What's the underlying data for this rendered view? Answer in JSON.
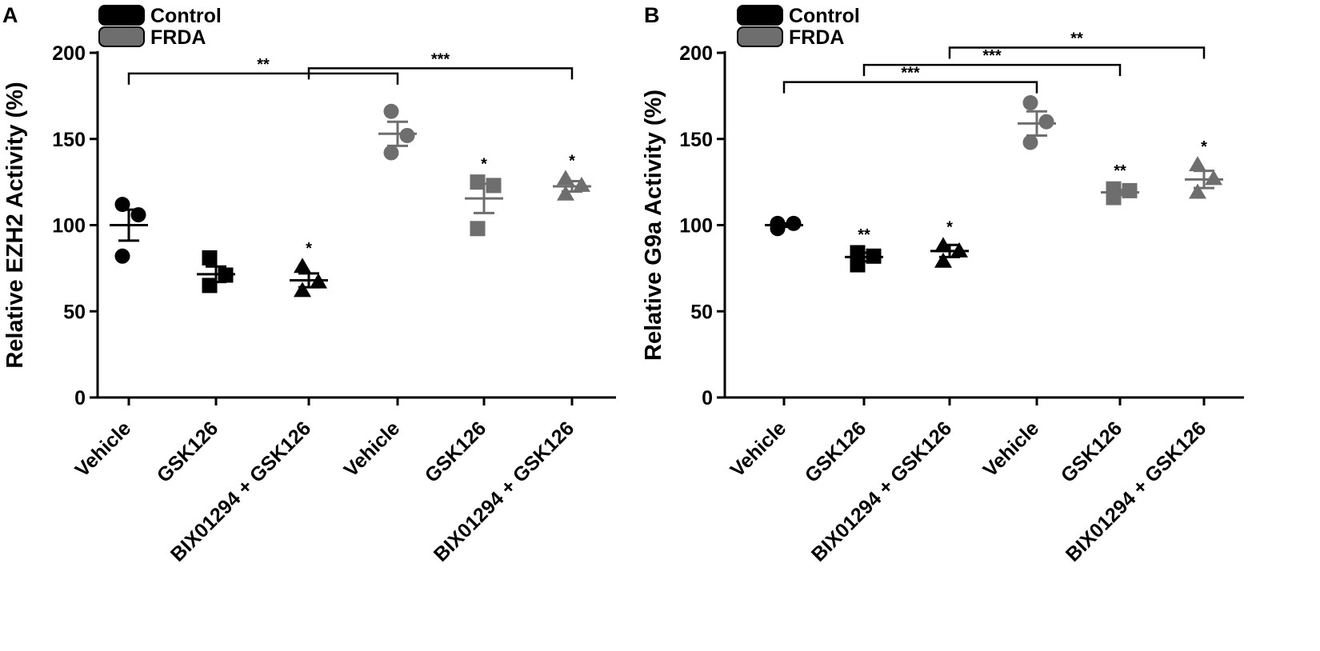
{
  "colors": {
    "control": "#000000",
    "frda": "#6e6e6e",
    "axis": "#000000"
  },
  "chart_data": [
    {
      "type": "scatter",
      "panel_label": "A",
      "ylabel": "Relative EZH2 Activity (%)",
      "xlabel": "",
      "ylim": [
        0,
        200
      ],
      "yticks": [
        "0",
        "50",
        "100",
        "150",
        "200"
      ],
      "categories": [
        "Vehicle",
        "GSK126",
        "BIX01294 + GSK126",
        "Vehicle",
        "GSK126",
        "BIX01294 + GSK126"
      ],
      "legend": [
        "Control",
        "FRDA"
      ],
      "series": [
        {
          "name": "Control",
          "groups": [
            {
              "category_index": 0,
              "marker": "circle",
              "points": [
                112,
                106,
                82
              ],
              "mean": 100,
              "sem": 9
            },
            {
              "category_index": 1,
              "marker": "square",
              "points": [
                81,
                71,
                65
              ],
              "mean": 71.5,
              "sem": 4.5
            },
            {
              "category_index": 2,
              "marker": "triangle",
              "points": [
                76,
                67,
                62
              ],
              "mean": 68,
              "sem": 4
            }
          ]
        },
        {
          "name": "FRDA",
          "groups": [
            {
              "category_index": 3,
              "marker": "circle",
              "points": [
                166,
                152,
                142
              ],
              "mean": 153,
              "sem": 7
            },
            {
              "category_index": 4,
              "marker": "square",
              "points": [
                125,
                123,
                98
              ],
              "mean": 115.5,
              "sem": 8.5
            },
            {
              "category_index": 5,
              "marker": "triangle",
              "points": [
                127,
                123,
                118
              ],
              "mean": 122.5,
              "sem": 3
            }
          ]
        }
      ],
      "significance_markers": [
        {
          "category_index": 2,
          "label": "*"
        },
        {
          "category_index": 4,
          "label": "*"
        },
        {
          "category_index": 5,
          "label": "*"
        }
      ],
      "comparison_brackets": [
        {
          "from": 0,
          "to": 3,
          "level": 188,
          "label": "**"
        },
        {
          "from": 2,
          "to": 5,
          "level": 191,
          "label": "***"
        }
      ]
    },
    {
      "type": "scatter",
      "panel_label": "B",
      "ylabel": "Relative G9a Activity (%)",
      "xlabel": "",
      "ylim": [
        0,
        200
      ],
      "yticks": [
        "0",
        "50",
        "100",
        "150",
        "200"
      ],
      "categories": [
        "Vehicle",
        "GSK126",
        "BIX01294 + GSK126",
        "Vehicle",
        "GSK126",
        "BIX01294 + GSK126"
      ],
      "legend": [
        "Control",
        "FRDA"
      ],
      "series": [
        {
          "name": "Control",
          "groups": [
            {
              "category_index": 0,
              "marker": "circle",
              "points": [
                101,
                101,
                98
              ],
              "mean": 100,
              "sem": 1
            },
            {
              "category_index": 1,
              "marker": "square",
              "points": [
                84,
                82,
                77
              ],
              "mean": 81.5,
              "sem": 2.5
            },
            {
              "category_index": 2,
              "marker": "triangle",
              "points": [
                88,
                85,
                79
              ],
              "mean": 85,
              "sem": 3.5
            }
          ]
        },
        {
          "name": "FRDA",
          "groups": [
            {
              "category_index": 3,
              "marker": "circle",
              "points": [
                171,
                160,
                148
              ],
              "mean": 159,
              "sem": 7
            },
            {
              "category_index": 4,
              "marker": "square",
              "points": [
                121,
                120,
                116
              ],
              "mean": 119,
              "sem": 1.5
            },
            {
              "category_index": 5,
              "marker": "triangle",
              "points": [
                135,
                127,
                119
              ],
              "mean": 126.5,
              "sem": 5
            }
          ]
        }
      ],
      "significance_markers": [
        {
          "category_index": 1,
          "label": "**"
        },
        {
          "category_index": 2,
          "label": "*"
        },
        {
          "category_index": 4,
          "label": "**"
        },
        {
          "category_index": 5,
          "label": "*"
        }
      ],
      "comparison_brackets": [
        {
          "from": 0,
          "to": 3,
          "level": 183,
          "label": "***"
        },
        {
          "from": 1,
          "to": 4,
          "level": 193,
          "label": "***"
        },
        {
          "from": 2,
          "to": 5,
          "level": 203,
          "label": "**"
        }
      ]
    }
  ]
}
